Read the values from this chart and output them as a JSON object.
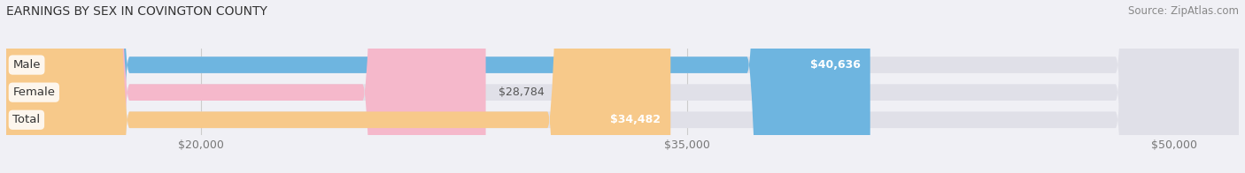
{
  "title": "EARNINGS BY SEX IN COVINGTON COUNTY",
  "source": "Source: ZipAtlas.com",
  "categories": [
    "Male",
    "Female",
    "Total"
  ],
  "values": [
    40636,
    28784,
    34482
  ],
  "bar_colors": [
    "#6eb5e0",
    "#f5b8cb",
    "#f7c98a"
  ],
  "track_color": "#e0e0e8",
  "value_labels": [
    "$40,636",
    "$28,784",
    "$34,482"
  ],
  "xlim_min": 14000,
  "xlim_max": 52000,
  "xticks": [
    20000,
    35000,
    50000
  ],
  "xtick_labels": [
    "$20,000",
    "$35,000",
    "$50,000"
  ],
  "bar_height": 0.6,
  "figsize": [
    14.06,
    1.96
  ],
  "dpi": 100,
  "title_fontsize": 10,
  "label_fontsize": 9.5,
  "value_fontsize": 9,
  "source_fontsize": 8.5,
  "background_color": "#f0f0f5",
  "track_bg": "#e8e8ee"
}
